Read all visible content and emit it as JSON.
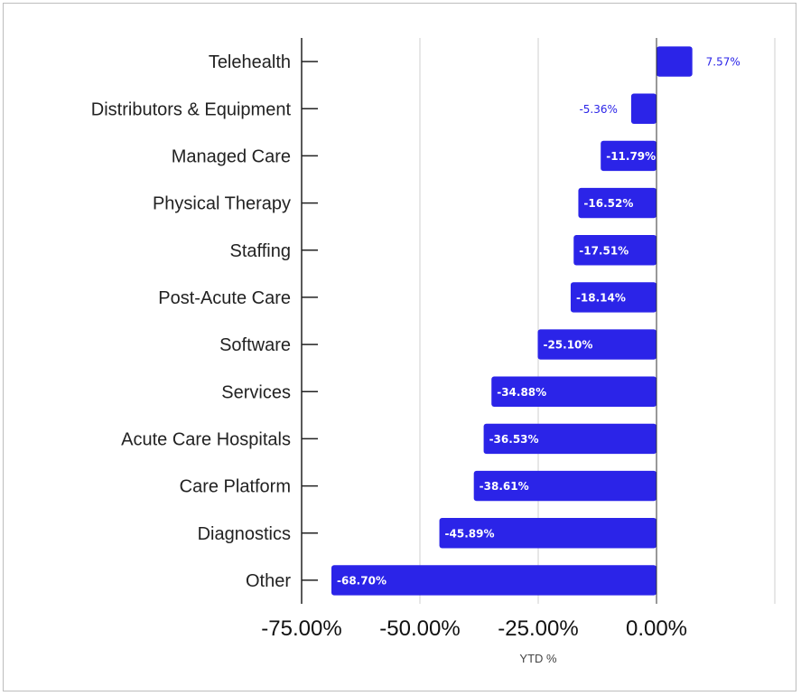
{
  "chart_data": {
    "type": "bar",
    "orientation": "horizontal",
    "categories": [
      "Telehealth",
      "Distributors & Equipment",
      "Managed Care",
      "Physical Therapy",
      "Staffing",
      "Post-Acute Care",
      "Software",
      "Services",
      "Acute Care Hospitals",
      "Care Platform",
      "Diagnostics",
      "Other"
    ],
    "values": [
      7.57,
      -5.36,
      -11.79,
      -16.52,
      -17.51,
      -18.14,
      -25.1,
      -34.88,
      -36.53,
      -38.61,
      -45.89,
      -68.7
    ],
    "data_labels": [
      "7.57%",
      "-5.36%",
      "-11.79%",
      "-16.52%",
      "-17.51%",
      "-18.14%",
      "-25.10%",
      "-34.88%",
      "-36.53%",
      "-38.61%",
      "-45.89%",
      "-68.70%"
    ],
    "xlim": [
      -75,
      25
    ],
    "xticks": [
      -75,
      -50,
      -25,
      0
    ],
    "xtick_labels": [
      "-75.00%",
      "-50.00%",
      "-25.00%",
      "0.00%"
    ],
    "xlabel": "YTD %",
    "ylabel": "",
    "title": "",
    "grid": true,
    "bar_color": "#2b24e8"
  }
}
